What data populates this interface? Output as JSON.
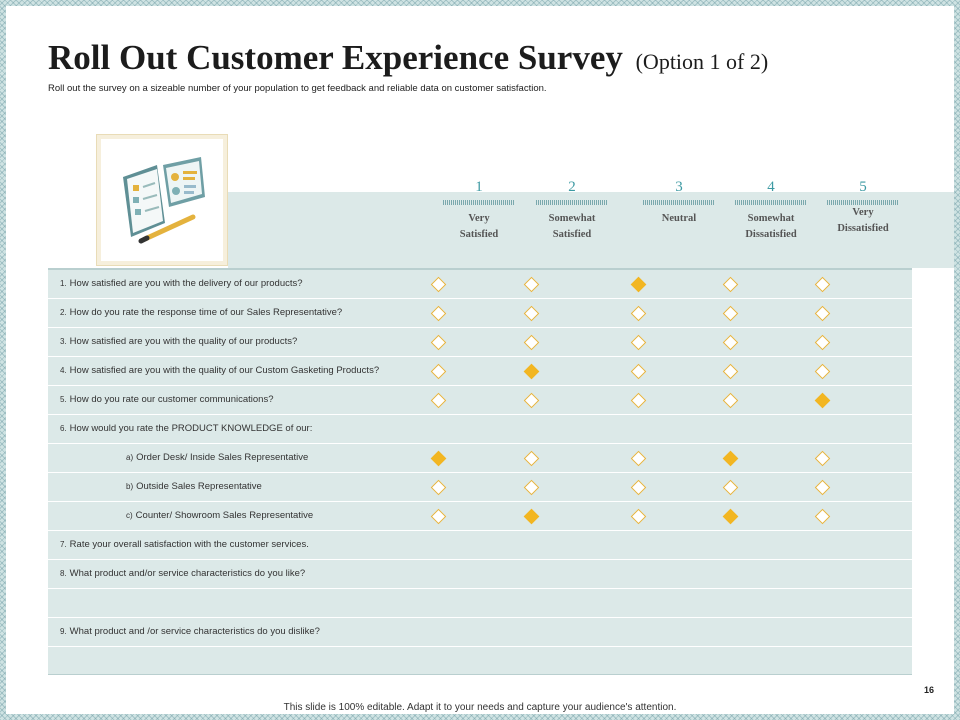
{
  "title": "Roll Out Customer Experience Survey",
  "title_option": "(Option 1 of  2)",
  "subtitle": "Roll out the survey on a sizeable number of your population to get feedback and reliable data on customer satisfaction.",
  "scale": [
    {
      "num": "1",
      "label_line1": "Very",
      "label_line2": "Satisfied"
    },
    {
      "num": "2",
      "label_line1": "Somewhat",
      "label_line2": "Satisfied"
    },
    {
      "num": "3",
      "label_line1": "Neutral",
      "label_line2": ""
    },
    {
      "num": "4",
      "label_line1": "Somewhat",
      "label_line2": "Dissatisfied"
    },
    {
      "num": "5",
      "label_line1": "Very",
      "label_line2": "Dissatisfied"
    }
  ],
  "rows": [
    {
      "num": "1.",
      "text": "How satisfied are you with the delivery of our products?",
      "ratings": [
        0,
        0,
        1,
        0,
        0
      ]
    },
    {
      "num": "2.",
      "text": "How do you rate the response time of our Sales Representative?",
      "ratings": [
        0,
        0,
        0,
        0,
        0
      ]
    },
    {
      "num": "3.",
      "text": "How satisfied are you with the quality of our products?",
      "ratings": [
        0,
        0,
        0,
        0,
        0
      ]
    },
    {
      "num": "4.",
      "text": "How satisfied are you with the quality of our Custom Gasketing Products?",
      "ratings": [
        0,
        1,
        0,
        0,
        0
      ]
    },
    {
      "num": "5.",
      "text": "How do you rate our customer communications?",
      "ratings": [
        0,
        0,
        0,
        0,
        1
      ]
    },
    {
      "num": "6.",
      "text": "How would you rate the PRODUCT  KNOWLEDGE  of our:"
    },
    {
      "num": "a)",
      "text": "Order Desk/ Inside Sales Representative",
      "ratings": [
        1,
        0,
        0,
        1,
        0
      ]
    },
    {
      "num": "b)",
      "text": "Outside Sales Representative",
      "ratings": [
        0,
        0,
        0,
        0,
        0
      ]
    },
    {
      "num": "c)",
      "text": "Counter/ Showroom Sales Representative",
      "ratings": [
        0,
        1,
        0,
        1,
        0
      ]
    },
    {
      "num": "7.",
      "text": "Rate your overall satisfaction with the customer services."
    },
    {
      "num": "8.",
      "text": "What product and/or service characteristics do you like?"
    },
    {
      "num": "",
      "text": ""
    },
    {
      "num": "9.",
      "text": "What product and /or service characteristics do you dislike?"
    },
    {
      "num": "",
      "text": ""
    }
  ],
  "page_number": "16",
  "footer": "This slide is 100% editable. Adapt it to your needs and capture your audience's attention.",
  "colors": {
    "accent": "#f2b622",
    "table_bg": "#dce9e8",
    "teal": "#3d9aa3"
  }
}
